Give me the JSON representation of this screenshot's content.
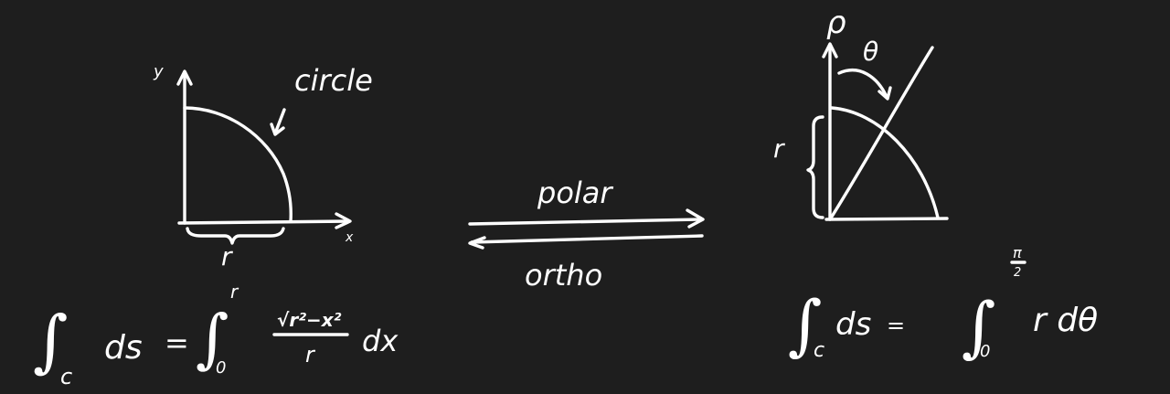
{
  "colors": {
    "background": "#1e1e1e",
    "ink": "#ffffff"
  },
  "left_plot": {
    "y_axis_label": "y",
    "x_axis_label": "x",
    "curve_label": "circle",
    "radius_label": "r",
    "formula": {
      "integral_sign": "∫",
      "subscript": "c",
      "lhs": "ds",
      "equals": "=",
      "integral_sign_2": "∫",
      "upper_limit": "r",
      "lower_limit": "0",
      "numerator": "√r²−x²",
      "denominator": "r",
      "differential": "dx"
    }
  },
  "transform": {
    "forward_label": "polar",
    "backward_label": "ortho"
  },
  "right_plot": {
    "rho_label": "ρ",
    "theta_label": "θ",
    "radius_label": "r",
    "formula": {
      "integral_sign": "∫",
      "subscript": "c",
      "lhs": "ds",
      "equals": "=",
      "integral_sign_2": "∫",
      "upper_limit_num": "π",
      "upper_limit_den": "2",
      "lower_limit": "0",
      "integrand": "r dθ"
    }
  }
}
